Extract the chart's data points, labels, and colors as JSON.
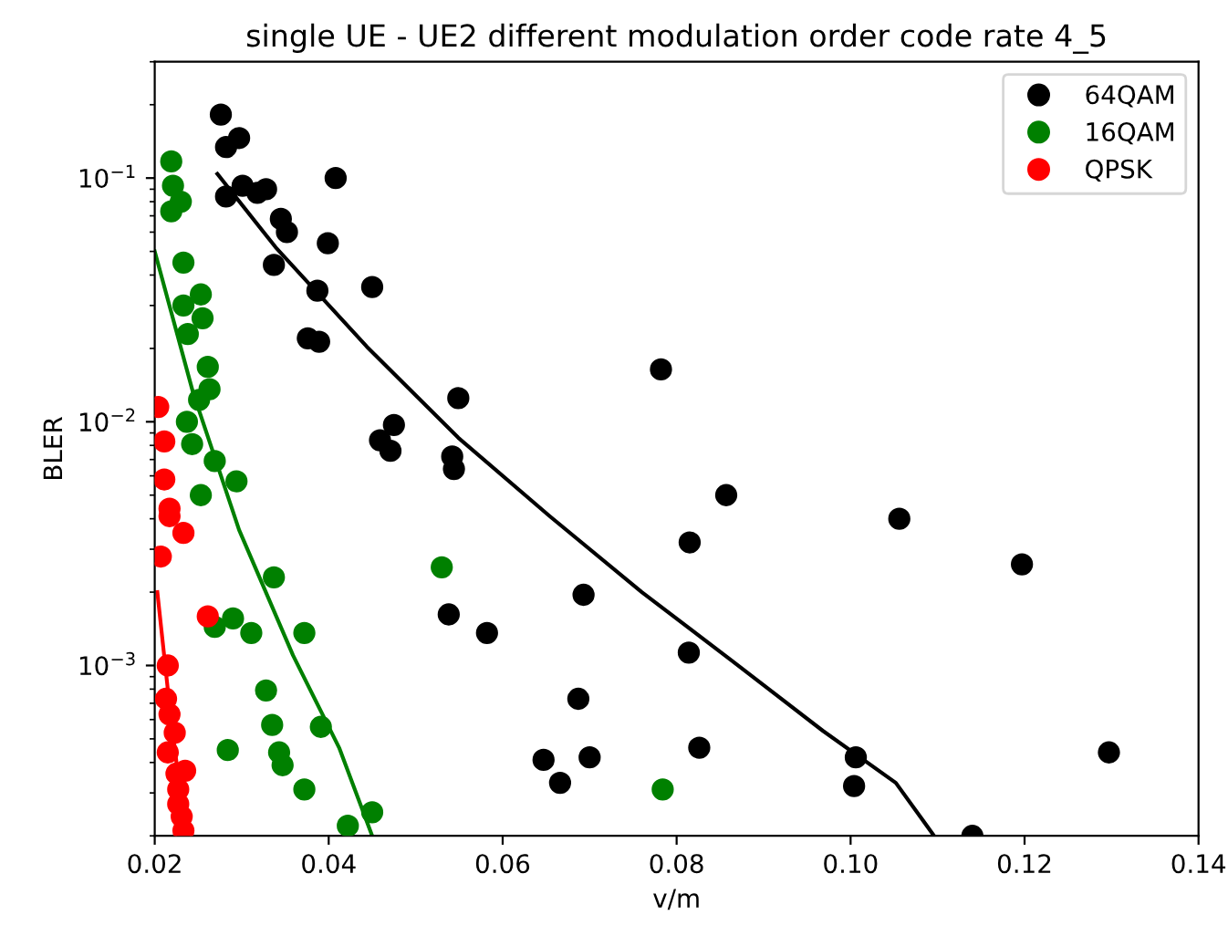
{
  "chart_data": {
    "type": "scatter",
    "title": "single UE - UE2 different modulation order code rate 4_5",
    "xlabel": "v/m",
    "ylabel": "BLER",
    "log": "y",
    "grid": false,
    "legend": "top right",
    "xlim": [
      0.02,
      0.14
    ],
    "xticks": [
      0.02,
      0.04,
      0.06,
      0.08,
      {
        "value": 0.1,
        "label": "0.10"
      },
      0.12,
      0.14
    ],
    "ylim": [
      0.0002,
      0.3
    ],
    "yticks": [
      {
        "value": 0.001,
        "label": "10$^{−3}$"
      },
      {
        "value": 0.01,
        "label": "10$^{−2}$"
      },
      {
        "value": 0.1,
        "label": "10$^{−1}$"
      }
    ],
    "series": [
      {
        "marker": "circle",
        "name": "64QAM",
        "color": "#000000",
        "x": [
          0.0276,
          0.0282,
          0.0297,
          0.0282,
          0.0301,
          0.0318,
          0.0328,
          0.0345,
          0.0352,
          0.0408,
          0.0337,
          0.0399,
          0.0387,
          0.0376,
          0.0389,
          0.045,
          0.0782,
          0.0549,
          0.0475,
          0.0459,
          0.0471,
          0.0542,
          0.0544,
          0.0857,
          0.0815,
          0.0693,
          0.0538,
          0.0582,
          0.0814,
          0.0687,
          0.0826,
          0.0647,
          0.07,
          0.0666,
          0.1056,
          0.1197,
          0.1006,
          0.1004,
          0.1297,
          0.114
        ],
        "values": [
          0.182,
          0.134,
          0.146,
          0.084,
          0.093,
          0.087,
          0.09,
          0.068,
          0.06,
          0.1,
          0.044,
          0.054,
          0.0345,
          0.022,
          0.0213,
          0.0357,
          0.0164,
          0.0125,
          0.0097,
          0.0084,
          0.0076,
          0.0072,
          0.0064,
          0.005,
          0.0032,
          0.00195,
          0.00162,
          0.00136,
          0.00113,
          0.00073,
          0.00046,
          0.00041,
          0.00042,
          0.00033,
          0.004,
          0.0026,
          0.00042,
          0.00032,
          0.00044,
          0.0002
        ]
      },
      {
        "marker": "circle",
        "name": "16QAM",
        "color": "#008000",
        "x": [
          0.0219,
          0.0221,
          0.023,
          0.0219,
          0.0233,
          0.0253,
          0.0233,
          0.0255,
          0.0238,
          0.0261,
          0.0263,
          0.0251,
          0.0237,
          0.0243,
          0.0269,
          0.0294,
          0.0253,
          0.0337,
          0.029,
          0.0269,
          0.0311,
          0.0372,
          0.0328,
          0.0335,
          0.0391,
          0.0284,
          0.0343,
          0.0347,
          0.0372,
          0.045,
          0.0422,
          0.0784,
          0.053
        ],
        "values": [
          0.117,
          0.093,
          0.08,
          0.073,
          0.045,
          0.0333,
          0.03,
          0.0266,
          0.0229,
          0.0168,
          0.0136,
          0.0123,
          0.01,
          0.0081,
          0.0069,
          0.0057,
          0.005,
          0.0023,
          0.00156,
          0.00144,
          0.00136,
          0.00136,
          0.00079,
          0.00057,
          0.00056,
          0.00045,
          0.00044,
          0.00039,
          0.00031,
          0.00025,
          0.00022,
          0.00031,
          0.00253
        ]
      },
      {
        "marker": "circle",
        "name": "QPSK",
        "color": "#ff0000",
        "x": [
          0.0204,
          0.0211,
          0.0211,
          0.0217,
          0.0217,
          0.0233,
          0.0207,
          0.0261,
          0.0215,
          0.0213,
          0.0217,
          0.0223,
          0.0215,
          0.0235,
          0.0225,
          0.0227,
          0.0227,
          0.0231,
          0.0233
        ],
        "values": [
          0.0115,
          0.0083,
          0.0058,
          0.0044,
          0.0041,
          0.0035,
          0.0028,
          0.00159,
          0.001,
          0.00073,
          0.00063,
          0.00053,
          0.00044,
          0.00037,
          0.00036,
          0.00031,
          0.00027,
          0.00024,
          0.00021
        ]
      },
      {
        "type": "line",
        "marker": "none",
        "color": "#000000",
        "x": [
          0.0272,
          0.0339,
          0.0444,
          0.0549,
          0.0654,
          0.076,
          0.0863,
          0.0968,
          0.1052,
          0.1096
        ],
        "values": [
          0.104,
          0.052,
          0.0203,
          0.0086,
          0.0041,
          0.002,
          0.00105,
          0.00054,
          0.00033,
          0.0002
        ]
      },
      {
        "type": "line",
        "marker": "none",
        "color": "#008000",
        "x": [
          0.02,
          0.0244,
          0.0297,
          0.0359,
          0.0412,
          0.045
        ],
        "values": [
          0.05,
          0.0132,
          0.0036,
          0.0011,
          0.00046,
          0.0002
        ]
      },
      {
        "type": "line",
        "marker": "none",
        "color": "#ff0000",
        "x": [
          0.0203,
          0.0215,
          0.0225,
          0.0235
        ],
        "values": [
          0.002,
          0.0008,
          0.0004,
          0.0002
        ]
      }
    ]
  }
}
